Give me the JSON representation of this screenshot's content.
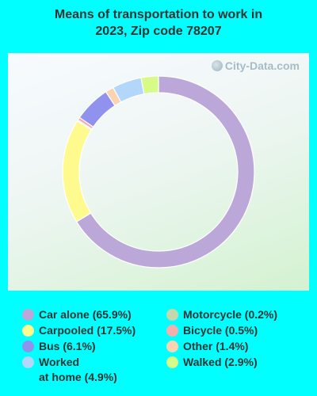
{
  "title_lines": [
    "Means of transportation to work in",
    "2023, Zip code 78207"
  ],
  "watermark": "City-Data.com",
  "chart_data": {
    "type": "pie",
    "donut": true,
    "title": "Means of transportation to work in 2023, Zip code 78207",
    "start_angle_deg": 0,
    "direction": "clockwise",
    "legend_placement": "bottom",
    "slices": [
      {
        "label": "Car alone",
        "display": "Car alone (65.9%)",
        "value": 65.9,
        "color": "#BBA8D9"
      },
      {
        "label": "Carpooled",
        "display": "Carpooled (17.5%)",
        "value": 17.5,
        "color": "#FFFA8E"
      },
      {
        "label": "Motorcycle",
        "display": "Motorcycle (0.2%)",
        "value": 0.2,
        "color": "#C4D8AC"
      },
      {
        "label": "Bicycle",
        "display": "Bicycle (0.5%)",
        "value": 0.5,
        "color": "#F3AEAE"
      },
      {
        "label": "Bus",
        "display": "Bus (6.1%)",
        "value": 6.1,
        "color": "#9191EE"
      },
      {
        "label": "Other",
        "display": "Other (1.4%)",
        "value": 1.4,
        "color": "#FBD3B0"
      },
      {
        "label": "Worked at home",
        "display": "Worked\nat home (4.9%)",
        "value": 4.9,
        "color": "#B2D7FB"
      },
      {
        "label": "Walked",
        "display": "Walked (2.9%)",
        "value": 2.9,
        "color": "#D6FC87"
      }
    ]
  },
  "legend": {
    "left": [
      "Car alone",
      "Carpooled",
      "Bus",
      "Worked at home"
    ],
    "right": [
      "Motorcycle",
      "Bicycle",
      "Other",
      "Walked"
    ]
  }
}
